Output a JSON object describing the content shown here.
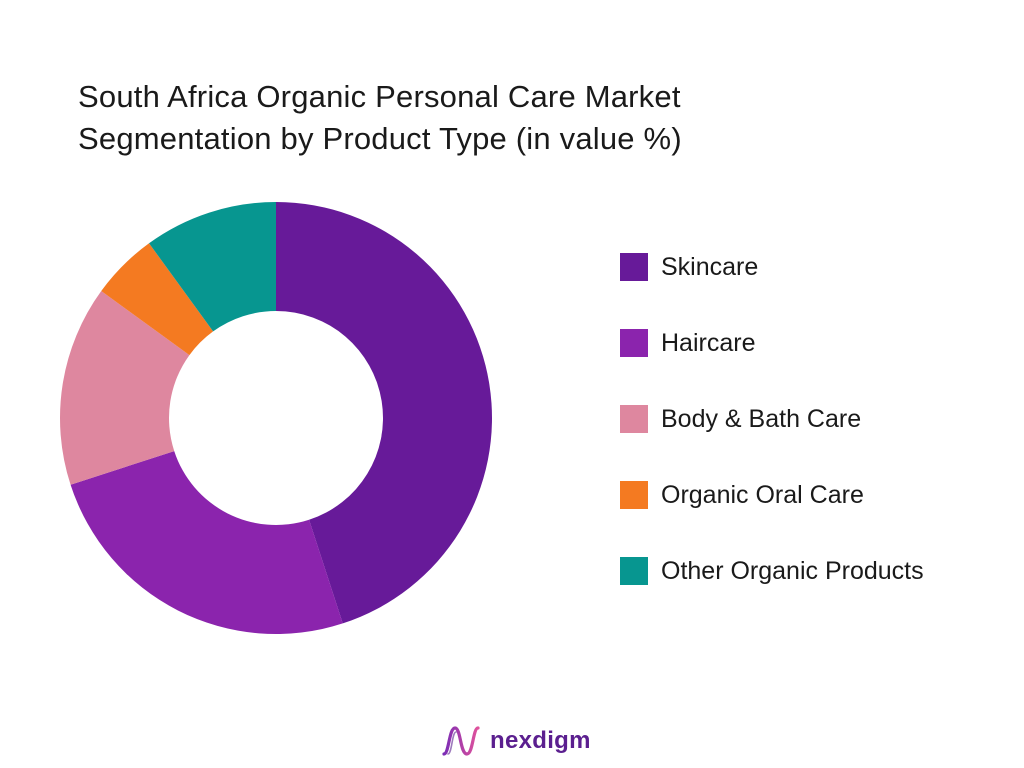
{
  "chart_data": {
    "type": "pie",
    "variant": "donut",
    "title": "South Africa Organic Personal Care Market Segmentation by Product Type (in value %)",
    "title_lines": [
      "South Africa Organic Personal Care Market",
      "Segmentation by Product Type (in value %)"
    ],
    "categories": [
      "Skincare",
      "Haircare",
      "Body & Bath Care",
      "Organic Oral Care",
      "Other Organic Products"
    ],
    "values": [
      45,
      25,
      15,
      5,
      10
    ],
    "colors": [
      "#671a99",
      "#8b24ad",
      "#de879f",
      "#f47a21",
      "#079690"
    ],
    "legend_position": "right",
    "grid": false
  },
  "brand": {
    "name": "nexdigm",
    "logo_icon": "nexdigm-wave-logo",
    "color": "#5b1f8f"
  }
}
